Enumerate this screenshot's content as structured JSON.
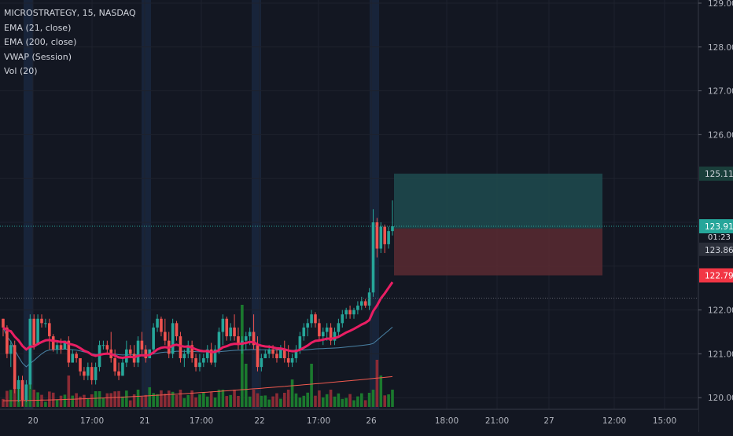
{
  "legend": {
    "symbol": "MICROSTRATEGY, 15, NASDAQ",
    "indicators": [
      "EMA (21, close)",
      "EMA (200, close)",
      "VWAP (Session)",
      "Vol (20)"
    ]
  },
  "price_axis": {
    "ticks": [
      "129.00",
      "128.00",
      "127.00",
      "126.00",
      "122.00",
      "121.00",
      "120.00"
    ],
    "badges": {
      "target": "125.11",
      "last_price": "123.91",
      "countdown": "01:23",
      "entry": "123.86",
      "stop": "122.79"
    }
  },
  "time_axis": {
    "ticks": [
      "20",
      "17:00",
      "21",
      "17:00",
      "22",
      "17:00",
      "26",
      "18:00",
      "21:00",
      "27",
      "12:00",
      "15:00"
    ]
  },
  "colors": {
    "background": "#131722",
    "up": "#26a69a",
    "down": "#ef5350",
    "ema21": "#e91e63",
    "ema200": "#f05a4f",
    "vwap": "#4a83a6",
    "target_zone": "#1f4b4f",
    "stop_zone": "#5a2a31",
    "last_price": "#26a69a",
    "stop_badge": "#f23645"
  },
  "chart_data": {
    "type": "candlestick",
    "position": {
      "entry": 123.86,
      "target": 125.11,
      "stop": 122.79
    },
    "candles": [
      [
        121.8,
        121.8,
        121.4,
        121.6
      ],
      [
        121.6,
        121.65,
        120.9,
        121.0
      ],
      [
        121.0,
        121.3,
        120.7,
        121.2
      ],
      [
        121.2,
        121.3,
        120.1,
        120.2
      ],
      [
        120.2,
        120.5,
        119.9,
        120.4
      ],
      [
        120.4,
        120.5,
        119.8,
        119.95
      ],
      [
        119.95,
        120.4,
        119.9,
        120.3
      ],
      [
        120.3,
        121.9,
        120.2,
        121.8
      ],
      [
        121.8,
        121.9,
        121.1,
        121.2
      ],
      [
        121.2,
        121.9,
        121.2,
        121.8
      ],
      [
        121.8,
        121.9,
        121.6,
        121.7
      ],
      [
        121.7,
        121.8,
        121.6,
        121.7
      ],
      [
        121.7,
        121.8,
        121.1,
        121.4
      ],
      [
        121.4,
        121.45,
        121.05,
        121.1
      ],
      [
        121.1,
        121.3,
        121.0,
        121.2
      ],
      [
        121.2,
        121.35,
        121.0,
        121.1
      ],
      [
        121.1,
        121.3,
        121.1,
        121.3
      ],
      [
        121.3,
        121.4,
        120.7,
        120.8
      ],
      [
        120.8,
        121.1,
        120.8,
        121.0
      ],
      [
        121.0,
        121.05,
        120.8,
        120.9
      ],
      [
        120.9,
        120.9,
        120.5,
        120.6
      ],
      [
        120.6,
        120.7,
        120.4,
        120.5
      ],
      [
        120.5,
        120.8,
        120.4,
        120.7
      ],
      [
        120.7,
        120.8,
        120.3,
        120.4
      ],
      [
        120.4,
        120.8,
        120.3,
        120.7
      ],
      [
        120.7,
        121.3,
        120.6,
        121.2
      ],
      [
        121.2,
        121.3,
        121.1,
        121.2
      ],
      [
        121.2,
        121.3,
        121.0,
        121.1
      ],
      [
        121.1,
        121.5,
        120.8,
        120.9
      ],
      [
        120.9,
        121.1,
        120.5,
        120.6
      ],
      [
        120.6,
        120.8,
        120.4,
        120.5
      ],
      [
        120.5,
        120.9,
        120.5,
        120.8
      ],
      [
        120.8,
        121.3,
        120.7,
        121.1
      ],
      [
        121.1,
        121.2,
        120.9,
        121.0
      ],
      [
        121.0,
        121.2,
        120.7,
        120.8
      ],
      [
        120.8,
        121.4,
        120.7,
        121.3
      ],
      [
        121.3,
        121.5,
        121.0,
        121.1
      ],
      [
        121.1,
        121.2,
        120.8,
        120.9
      ],
      [
        120.9,
        121.1,
        120.9,
        121.1
      ],
      [
        121.1,
        121.7,
        121.0,
        121.6
      ],
      [
        121.6,
        121.9,
        121.5,
        121.8
      ],
      [
        121.8,
        121.85,
        121.4,
        121.5
      ],
      [
        121.5,
        121.8,
        121.2,
        121.3
      ],
      [
        121.3,
        121.5,
        120.9,
        121.0
      ],
      [
        121.0,
        121.8,
        120.9,
        121.7
      ],
      [
        121.7,
        121.75,
        121.3,
        121.4
      ],
      [
        121.4,
        121.5,
        120.8,
        120.9
      ],
      [
        120.9,
        121.1,
        120.7,
        121.0
      ],
      [
        121.0,
        121.3,
        120.9,
        121.2
      ],
      [
        121.2,
        121.3,
        120.8,
        120.9
      ],
      [
        120.9,
        121.0,
        120.6,
        120.7
      ],
      [
        120.7,
        121.0,
        120.6,
        120.8
      ],
      [
        120.8,
        121.0,
        120.7,
        120.9
      ],
      [
        120.9,
        121.2,
        120.8,
        121.1
      ],
      [
        121.1,
        121.25,
        120.75,
        120.8
      ],
      [
        120.8,
        121.2,
        120.7,
        121.1
      ],
      [
        121.1,
        121.6,
        121.0,
        121.5
      ],
      [
        121.5,
        121.9,
        121.2,
        121.8
      ],
      [
        121.8,
        121.85,
        121.3,
        121.4
      ],
      [
        121.4,
        121.7,
        121.3,
        121.6
      ],
      [
        121.6,
        121.9,
        121.3,
        121.4
      ],
      [
        121.4,
        121.6,
        121.1,
        121.2
      ],
      [
        121.2,
        121.4,
        121.0,
        121.3
      ],
      [
        121.3,
        121.5,
        121.1,
        121.4
      ],
      [
        121.4,
        121.6,
        121.2,
        121.5
      ],
      [
        121.5,
        121.9,
        121.1,
        121.2
      ],
      [
        121.2,
        121.4,
        120.6,
        120.7
      ],
      [
        120.7,
        121.0,
        120.6,
        120.9
      ],
      [
        120.9,
        121.1,
        120.9,
        121.0
      ],
      [
        121.0,
        121.2,
        120.9,
        121.1
      ],
      [
        121.1,
        121.2,
        120.9,
        121.0
      ],
      [
        121.0,
        121.1,
        120.8,
        120.9
      ],
      [
        120.9,
        121.2,
        120.9,
        121.1
      ],
      [
        121.1,
        121.3,
        120.8,
        120.9
      ],
      [
        120.9,
        121.2,
        120.7,
        120.8
      ],
      [
        120.8,
        121.0,
        120.7,
        120.9
      ],
      [
        120.9,
        121.2,
        120.8,
        121.1
      ],
      [
        121.1,
        121.5,
        121.0,
        121.4
      ],
      [
        121.4,
        121.7,
        121.3,
        121.6
      ],
      [
        121.6,
        121.8,
        121.4,
        121.7
      ],
      [
        121.7,
        122.0,
        121.6,
        121.9
      ],
      [
        121.9,
        121.95,
        121.6,
        121.7
      ],
      [
        121.7,
        121.8,
        121.3,
        121.4
      ],
      [
        121.4,
        121.6,
        121.2,
        121.5
      ],
      [
        121.5,
        121.7,
        121.3,
        121.6
      ],
      [
        121.6,
        121.7,
        121.2,
        121.3
      ],
      [
        121.3,
        121.6,
        121.2,
        121.5
      ],
      [
        121.5,
        121.8,
        121.4,
        121.7
      ],
      [
        121.7,
        122.0,
        121.6,
        121.9
      ],
      [
        121.9,
        122.05,
        121.8,
        122.0
      ],
      [
        122.0,
        122.1,
        121.8,
        121.9
      ],
      [
        121.9,
        122.05,
        121.8,
        122.0
      ],
      [
        122.0,
        122.2,
        121.9,
        122.1
      ],
      [
        122.1,
        122.3,
        122.0,
        122.2
      ],
      [
        122.2,
        122.25,
        122.05,
        122.1
      ],
      [
        122.1,
        122.5,
        122.0,
        122.4
      ],
      [
        122.4,
        124.3,
        122.3,
        124.0
      ],
      [
        124.0,
        124.1,
        123.2,
        123.4
      ],
      [
        123.4,
        124.0,
        123.3,
        123.9
      ],
      [
        123.9,
        123.95,
        123.3,
        123.5
      ],
      [
        123.5,
        123.9,
        123.4,
        123.8
      ],
      [
        123.8,
        124.5,
        123.7,
        123.91
      ]
    ]
  }
}
